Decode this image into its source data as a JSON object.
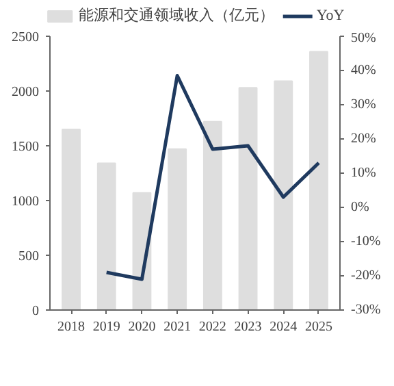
{
  "chart_data": {
    "type": "bar",
    "categories": [
      "2018",
      "2019",
      "2020",
      "2021",
      "2022",
      "2023",
      "2024",
      "2025"
    ],
    "series": [
      {
        "name": "能源和交通领域收入（亿元）",
        "color": "#dedede",
        "values": [
          1650,
          1340,
          1070,
          1470,
          1720,
          2030,
          2090,
          2360
        ]
      },
      {
        "name": "YoY",
        "type": "line",
        "axis": "y2",
        "color": "#1f3a5f",
        "values": [
          null,
          -19,
          -21,
          38.5,
          17,
          18,
          3,
          13
        ]
      }
    ],
    "ylim": [
      0,
      2500
    ],
    "yticks": [
      0,
      500,
      1000,
      1500,
      2000,
      2500
    ],
    "y2lim": [
      -30,
      50
    ],
    "y2ticks": [
      {
        "value": -30,
        "label": "-30%"
      },
      {
        "value": -20,
        "label": "-20%"
      },
      {
        "value": -10,
        "label": "-10%"
      },
      {
        "value": 0,
        "label": "0%"
      },
      {
        "value": 10,
        "label": "10%"
      },
      {
        "value": 20,
        "label": "20%"
      },
      {
        "value": 30,
        "label": "30%"
      },
      {
        "value": 40,
        "label": "40%"
      },
      {
        "value": 50,
        "label": "50%"
      }
    ],
    "grid": false,
    "legend": "top"
  }
}
